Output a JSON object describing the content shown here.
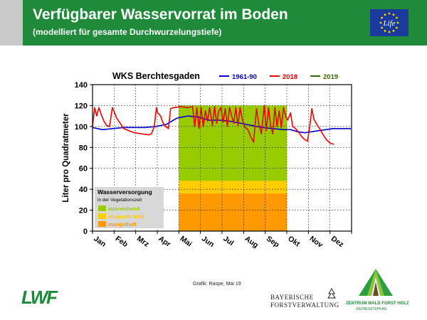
{
  "header": {
    "title": "Verfügbarer Wasservorrat im Boden",
    "subtitle": "(modelliert für gesamte Durchwurzelungstiefe)",
    "brand_color": "#1e8a3a",
    "eu_logo_text": "Life"
  },
  "chart_data": {
    "type": "line",
    "title": "WKS Berchtesgaden",
    "ylabel": "Liter pro Quadratmeter",
    "ylim": [
      0,
      140
    ],
    "yticks": [
      0,
      20,
      40,
      60,
      80,
      100,
      120,
      140
    ],
    "months": [
      "Jan",
      "Feb",
      "Mrz",
      "Apr",
      "Mai",
      "Jun",
      "Jul",
      "Aug",
      "Sep",
      "Okt",
      "Nov",
      "Dez"
    ],
    "x_unit": "day of year",
    "grid": true,
    "legend_position": "top",
    "vegetation_period": {
      "start_month": "Mai",
      "end_month": "Okt",
      "bands": [
        {
          "from": 0,
          "to": 36,
          "color": "#ff9900"
        },
        {
          "from": 36,
          "to": 48,
          "color": "#ffcc00"
        },
        {
          "from": 48,
          "to": 120,
          "color": "#99cc00"
        }
      ]
    },
    "series": [
      {
        "name": "1961-90",
        "color": "#0000cc",
        "points": [
          [
            1,
            99
          ],
          [
            15,
            97
          ],
          [
            30,
            98
          ],
          [
            45,
            99
          ],
          [
            60,
            99
          ],
          [
            75,
            99
          ],
          [
            90,
            100
          ],
          [
            105,
            102
          ],
          [
            115,
            106
          ],
          [
            120,
            108
          ],
          [
            135,
            110
          ],
          [
            150,
            109
          ],
          [
            165,
            106
          ],
          [
            180,
            106
          ],
          [
            195,
            105
          ],
          [
            210,
            103
          ],
          [
            225,
            101
          ],
          [
            240,
            99
          ],
          [
            255,
            98
          ],
          [
            270,
            97
          ],
          [
            280,
            97
          ],
          [
            290,
            95
          ],
          [
            300,
            94
          ],
          [
            310,
            95
          ],
          [
            320,
            96
          ],
          [
            330,
            97
          ],
          [
            340,
            98
          ],
          [
            350,
            98
          ],
          [
            365,
            98
          ]
        ]
      },
      {
        "name": "2018",
        "color": "#ee0000",
        "points": [
          [
            1,
            100
          ],
          [
            4,
            118
          ],
          [
            7,
            110
          ],
          [
            10,
            118
          ],
          [
            13,
            112
          ],
          [
            17,
            105
          ],
          [
            21,
            101
          ],
          [
            25,
            100
          ],
          [
            29,
            118
          ],
          [
            31,
            115
          ],
          [
            35,
            108
          ],
          [
            40,
            103
          ],
          [
            45,
            98
          ],
          [
            52,
            96
          ],
          [
            60,
            94
          ],
          [
            70,
            93
          ],
          [
            80,
            92
          ],
          [
            84,
            93
          ],
          [
            88,
            100
          ],
          [
            91,
            118
          ],
          [
            93,
            113
          ],
          [
            97,
            110
          ],
          [
            100,
            104
          ],
          [
            104,
            100
          ],
          [
            108,
            98
          ],
          [
            111,
            117
          ],
          [
            115,
            118
          ],
          [
            125,
            119
          ],
          [
            135,
            118
          ],
          [
            142,
            119
          ],
          [
            145,
            100
          ],
          [
            148,
            118
          ],
          [
            151,
            98
          ],
          [
            154,
            118
          ],
          [
            157,
            100
          ],
          [
            160,
            115
          ],
          [
            163,
            105
          ],
          [
            166,
            118
          ],
          [
            170,
            101
          ],
          [
            173,
            119
          ],
          [
            176,
            103
          ],
          [
            179,
            115
          ],
          [
            182,
            118
          ],
          [
            185,
            104
          ],
          [
            188,
            117
          ],
          [
            191,
            100
          ],
          [
            194,
            118
          ],
          [
            197,
            110
          ],
          [
            200,
            103
          ],
          [
            203,
            118
          ],
          [
            206,
            101
          ],
          [
            209,
            118
          ],
          [
            212,
            107
          ],
          [
            216,
            99
          ],
          [
            220,
            97
          ],
          [
            224,
            90
          ],
          [
            228,
            85
          ],
          [
            232,
            117
          ],
          [
            235,
            103
          ],
          [
            239,
            93
          ],
          [
            243,
            120
          ],
          [
            246,
            96
          ],
          [
            249,
            118
          ],
          [
            252,
            101
          ],
          [
            255,
            93
          ],
          [
            258,
            118
          ],
          [
            261,
            100
          ],
          [
            264,
            115
          ],
          [
            267,
            99
          ],
          [
            270,
            118
          ],
          [
            273,
            110
          ],
          [
            276,
            106
          ],
          [
            280,
            113
          ],
          [
            283,
            100
          ],
          [
            287,
            98
          ],
          [
            291,
            95
          ],
          [
            295,
            91
          ],
          [
            299,
            88
          ],
          [
            304,
            86
          ],
          [
            307,
            100
          ],
          [
            310,
            117
          ],
          [
            313,
            107
          ],
          [
            317,
            102
          ],
          [
            321,
            98
          ],
          [
            326,
            92
          ],
          [
            331,
            87
          ],
          [
            336,
            84
          ],
          [
            341,
            83
          ]
        ]
      },
      {
        "name": "2019",
        "color": "#336600",
        "points": []
      }
    ],
    "annotation_box": {
      "title": "Wasserversorgung",
      "subtitle": "in der Vegetationszeit",
      "items": [
        {
          "label": "ausreichend",
          "color": "#99cc00"
        },
        {
          "label": "eingeschränkt",
          "color": "#ffcc00"
        },
        {
          "label": "mangelhaft",
          "color": "#ff9900"
        }
      ]
    }
  },
  "credit": "Grafik: Raspe, Mai 19",
  "footer": {
    "lwf": "LWF",
    "bayerische_line1": "BAYERISCHE",
    "bayerische_line2": "FORSTVERWALTUNG",
    "zentrum_line1": "ZENTRUM WALD FORST HOLZ",
    "zentrum_line2": "WEIHENSTEPHAN"
  }
}
